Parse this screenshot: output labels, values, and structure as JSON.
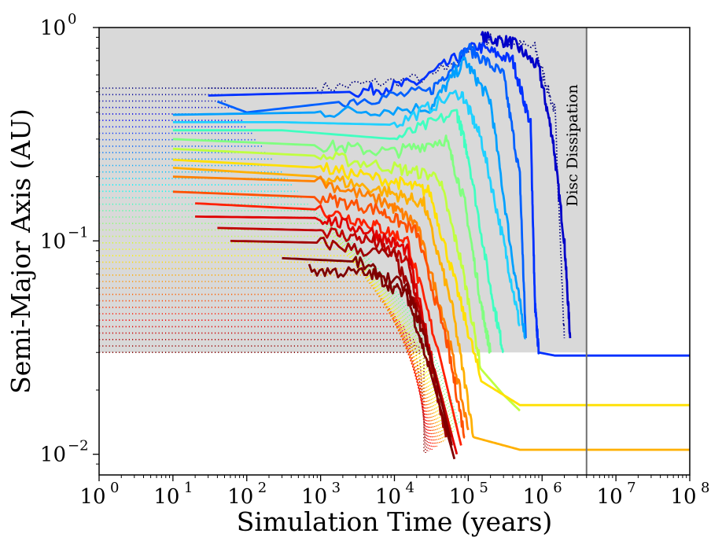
{
  "chart_data": {
    "type": "line",
    "title": "",
    "xlabel": "Simulation Time (years)",
    "ylabel": "Semi-Major Axis (AU)",
    "x_scale": "log",
    "y_scale": "log",
    "xlim": [
      1,
      100000000
    ],
    "ylim": [
      0.008,
      1.0
    ],
    "grid": false,
    "legend": "none",
    "x_ticks": [
      {
        "value": 1,
        "base": "10",
        "exp": "0"
      },
      {
        "value": 10,
        "base": "10",
        "exp": "1"
      },
      {
        "value": 100,
        "base": "10",
        "exp": "2"
      },
      {
        "value": 1000,
        "base": "10",
        "exp": "3"
      },
      {
        "value": 10000,
        "base": "10",
        "exp": "4"
      },
      {
        "value": 100000,
        "base": "10",
        "exp": "5"
      },
      {
        "value": 1000000,
        "base": "10",
        "exp": "6"
      },
      {
        "value": 10000000,
        "base": "10",
        "exp": "7"
      },
      {
        "value": 100000000,
        "base": "10",
        "exp": "8"
      }
    ],
    "y_ticks": [
      {
        "value": 1.0,
        "base": "10",
        "exp": "0"
      },
      {
        "value": 0.1,
        "base": "10",
        "exp": "−1"
      },
      {
        "value": 0.01,
        "base": "10",
        "exp": "−2"
      }
    ],
    "shaded_region": {
      "x": [
        1,
        4000000
      ],
      "y": [
        0.03,
        1.0
      ],
      "color": "#d9d9d9"
    },
    "vline": {
      "x": 4000000,
      "label": "Disc Dissipation",
      "color": "#707070"
    },
    "colormap": "jet",
    "dotted_start": {
      "a_min": 0.03,
      "a_max": 0.52,
      "count": 42,
      "t_min": 1,
      "t_max": 3000,
      "note": "initial embryos plotted as dotted tracks"
    },
    "series": [
      {
        "color": "#00007f",
        "start": [
          30,
          0.52
        ],
        "points": [
          [
            30,
            0.52
          ],
          [
            1000,
            0.52
          ],
          [
            30000,
            0.58
          ],
          [
            200000,
            0.88
          ],
          [
            800000,
            0.8
          ],
          [
            1500000,
            0.4
          ],
          [
            2000000,
            0.035
          ]
        ],
        "style": "dotted"
      },
      {
        "color": "#0000c8",
        "points": [
          [
            150000,
            0.9
          ],
          [
            400000,
            0.85
          ],
          [
            900000,
            0.65
          ],
          [
            1400000,
            0.3
          ],
          [
            2000000,
            0.1
          ],
          [
            2400000,
            0.035
          ]
        ],
        "style": "solid"
      },
      {
        "color": "#0030ff",
        "points": [
          [
            30,
            0.48
          ],
          [
            3000,
            0.5
          ],
          [
            20000,
            0.55
          ],
          [
            130000,
            0.82
          ],
          [
            400000,
            0.7
          ],
          [
            700000,
            0.35
          ],
          [
            800000,
            0.05
          ],
          [
            900000,
            0.03
          ],
          [
            1500000,
            0.029
          ],
          [
            100000000,
            0.029
          ]
        ],
        "style": "solid"
      },
      {
        "color": "#0060ff",
        "points": [
          [
            40,
            0.45
          ],
          [
            100,
            0.4
          ],
          [
            2000,
            0.45
          ],
          [
            30000,
            0.5
          ],
          [
            100000,
            0.8
          ],
          [
            300000,
            0.6
          ],
          [
            500000,
            0.2
          ],
          [
            600000,
            0.035
          ]
        ],
        "style": "solid"
      },
      {
        "color": "#00a0ff",
        "points": [
          [
            10,
            0.39
          ],
          [
            1000,
            0.4
          ],
          [
            30000,
            0.42
          ],
          [
            90000,
            0.7
          ],
          [
            200000,
            0.45
          ],
          [
            400000,
            0.08
          ],
          [
            600000,
            0.035
          ]
        ],
        "style": "solid"
      },
      {
        "color": "#20d0ff",
        "points": [
          [
            10,
            0.36
          ],
          [
            300,
            0.36
          ],
          [
            10000,
            0.35
          ],
          [
            80000,
            0.5
          ],
          [
            150000,
            0.3
          ],
          [
            300000,
            0.1
          ],
          [
            500000,
            0.04
          ]
        ],
        "style": "solid"
      },
      {
        "color": "#40ffc0",
        "points": [
          [
            10,
            0.33
          ],
          [
            300,
            0.33
          ],
          [
            10000,
            0.3
          ],
          [
            70000,
            0.4
          ],
          [
            100000,
            0.25
          ],
          [
            200000,
            0.06
          ],
          [
            300000,
            0.03
          ]
        ],
        "style": "solid"
      },
      {
        "color": "#80ff80",
        "points": [
          [
            10,
            0.3
          ],
          [
            1000,
            0.28
          ],
          [
            10000,
            0.26
          ],
          [
            50000,
            0.3
          ],
          [
            90000,
            0.15
          ],
          [
            150000,
            0.05
          ],
          [
            200000,
            0.03
          ]
        ],
        "style": "solid"
      },
      {
        "color": "#c0ff40",
        "points": [
          [
            10,
            0.27
          ],
          [
            1000,
            0.25
          ],
          [
            10000,
            0.22
          ],
          [
            40000,
            0.2
          ],
          [
            80000,
            0.08
          ],
          [
            150000,
            0.025
          ],
          [
            300000,
            0.019
          ],
          [
            500000,
            0.016
          ]
        ],
        "style": "solid"
      },
      {
        "color": "#ffe000",
        "points": [
          [
            10,
            0.24
          ],
          [
            1000,
            0.22
          ],
          [
            10000,
            0.19
          ],
          [
            30000,
            0.17
          ],
          [
            70000,
            0.06
          ],
          [
            150000,
            0.022
          ],
          [
            500000,
            0.017
          ],
          [
            100000000,
            0.017
          ]
        ],
        "style": "solid"
      },
      {
        "color": "#ffb000",
        "points": [
          [
            10,
            0.22
          ],
          [
            1000,
            0.2
          ],
          [
            8000,
            0.17
          ],
          [
            25000,
            0.15
          ],
          [
            60000,
            0.05
          ],
          [
            120000,
            0.012
          ],
          [
            500000,
            0.0105
          ],
          [
            100000000,
            0.0105
          ]
        ],
        "style": "solid"
      },
      {
        "color": "#ff8000",
        "points": [
          [
            10,
            0.2
          ],
          [
            1000,
            0.19
          ],
          [
            8000,
            0.15
          ],
          [
            20000,
            0.12
          ],
          [
            50000,
            0.04
          ],
          [
            100000,
            0.013
          ]
        ],
        "style": "solid"
      },
      {
        "color": "#ff5000",
        "points": [
          [
            10,
            0.17
          ],
          [
            1000,
            0.16
          ],
          [
            6000,
            0.14
          ],
          [
            20000,
            0.11
          ],
          [
            50000,
            0.035
          ],
          [
            90000,
            0.012
          ]
        ],
        "style": "solid"
      },
      {
        "color": "#ff2000",
        "points": [
          [
            20,
            0.15
          ],
          [
            1000,
            0.14
          ],
          [
            5000,
            0.12
          ],
          [
            15000,
            0.1
          ],
          [
            40000,
            0.03
          ],
          [
            80000,
            0.011
          ]
        ],
        "style": "solid"
      },
      {
        "color": "#e00000",
        "points": [
          [
            20,
            0.13
          ],
          [
            1000,
            0.128
          ],
          [
            5000,
            0.11
          ],
          [
            15000,
            0.09
          ],
          [
            35000,
            0.025
          ],
          [
            70000,
            0.01
          ]
        ],
        "style": "solid"
      },
      {
        "color": "#c00000",
        "points": [
          [
            40,
            0.115
          ],
          [
            1000,
            0.112
          ],
          [
            5000,
            0.1
          ],
          [
            15000,
            0.08
          ],
          [
            30000,
            0.03
          ],
          [
            60000,
            0.012
          ]
        ],
        "style": "solid"
      },
      {
        "color": "#a00000",
        "points": [
          [
            60,
            0.1
          ],
          [
            1000,
            0.098
          ],
          [
            10000,
            0.085
          ],
          [
            25000,
            0.04
          ],
          [
            50000,
            0.012
          ]
        ],
        "style": "solid"
      },
      {
        "color": "#800000",
        "points": [
          [
            300,
            0.083
          ],
          [
            3000,
            0.08
          ],
          [
            15000,
            0.06
          ],
          [
            30000,
            0.03
          ],
          [
            60000,
            0.011
          ]
        ],
        "style": "solid"
      },
      {
        "color": "#7f0000",
        "points": [
          [
            700,
            0.073
          ],
          [
            5000,
            0.07
          ],
          [
            15000,
            0.055
          ],
          [
            30000,
            0.025
          ],
          [
            65000,
            0.0095
          ]
        ],
        "style": "solid"
      }
    ]
  }
}
